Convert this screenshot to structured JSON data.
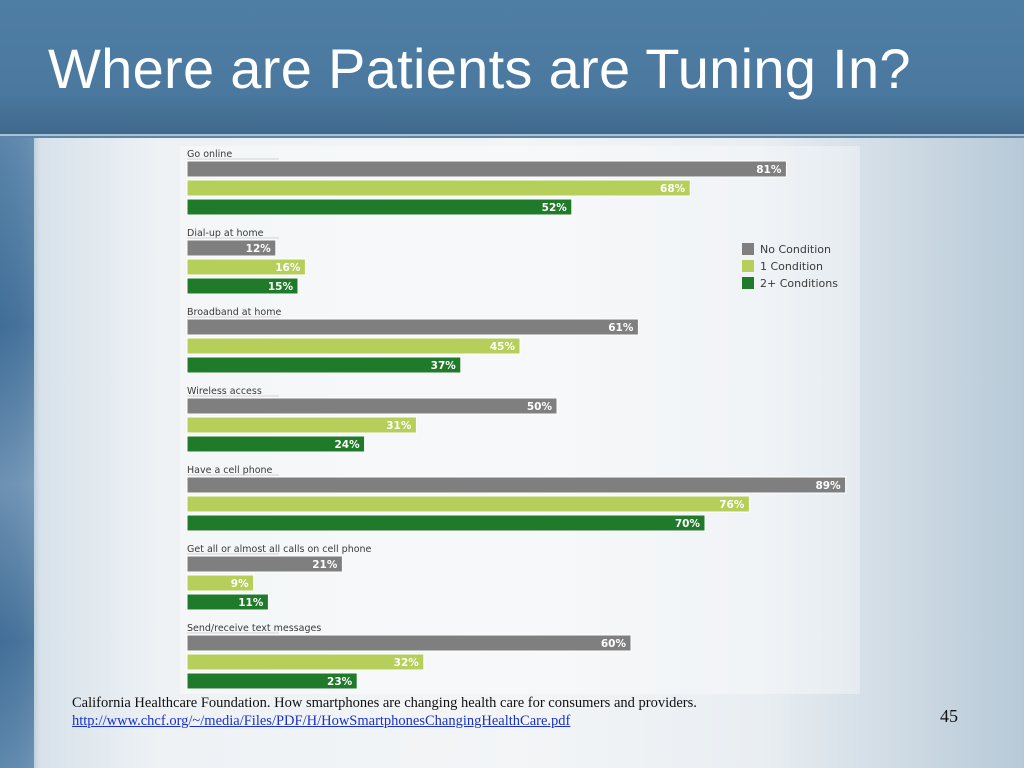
{
  "slide": {
    "title": "Where are Patients are Tuning In?",
    "citation_text": "California Healthcare Foundation.  How smartphones are changing health care for consumers and providers.",
    "citation_link": "http://www.chcf.org/~/media/Files/PDF/H/HowSmartphonesChangingHealthCare.pdf",
    "page_number": "45"
  },
  "chart_data": {
    "type": "bar",
    "orientation": "horizontal",
    "categories": [
      "Go online",
      "Dial-up at home",
      "Broadband at home",
      "Wireless access",
      "Have a cell phone",
      "Get all or almost all calls on cell phone",
      "Send/receive text messages"
    ],
    "series": [
      {
        "name": "No Condition",
        "color": "#7f7f7f",
        "values": [
          81,
          12,
          61,
          50,
          89,
          21,
          60
        ],
        "labels": [
          "81%",
          "12%",
          "61%",
          "50%",
          "89%",
          "21%",
          "60%"
        ]
      },
      {
        "name": "1 Condition",
        "color": "#b5cf5a",
        "values": [
          68,
          16,
          45,
          31,
          76,
          9,
          32
        ],
        "labels": [
          "68%",
          "16%",
          "45%",
          "31%",
          "76%",
          "9%",
          "32%"
        ]
      },
      {
        "name": "2+ Conditions",
        "color": "#1f7a2a",
        "values": [
          52,
          15,
          37,
          24,
          70,
          11,
          23
        ],
        "labels": [
          "52%",
          "15%",
          "37%",
          "24%",
          "70%",
          "11%",
          "23%"
        ]
      }
    ],
    "xlim": [
      0,
      100
    ],
    "legend_position": "right",
    "grid": false
  }
}
